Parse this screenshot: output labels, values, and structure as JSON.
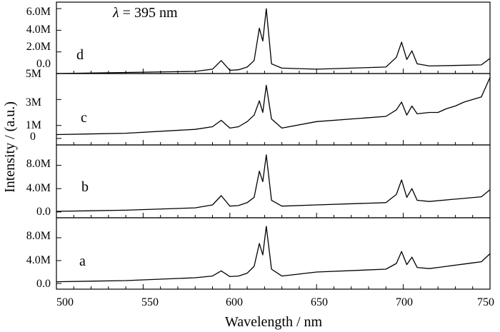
{
  "chart_data": {
    "type": "line",
    "xlabel": "Wavelength / nm",
    "ylabel": "Intensity / (a.u.)",
    "xlim": [
      500,
      750
    ],
    "x_ticks": [
      500,
      550,
      600,
      650,
      700,
      750
    ],
    "x_tick_labels": [
      "500",
      "550",
      "600",
      "650",
      "700",
      "750"
    ],
    "annotation": {
      "symbol": "λ",
      "text": " = 395 nm"
    },
    "colors": {
      "line": "#000000",
      "frame": "#000000"
    },
    "grid": false,
    "panels": [
      {
        "label": "d",
        "ylim": [
          0,
          6.6
        ],
        "y_ticks": [
          0,
          2,
          4,
          6
        ],
        "y_tick_labels": [
          "0.0",
          "2.0M",
          "4.0M",
          "6.0M"
        ],
        "x": [
          500,
          540,
          580,
          590,
          595,
          600,
          605,
          610,
          614,
          617,
          619,
          621,
          624,
          630,
          650,
          690,
          696,
          699,
          702,
          705,
          708,
          715,
          745,
          750
        ],
        "values": [
          0,
          0.1,
          0.2,
          0.4,
          1.2,
          0.3,
          0.35,
          0.6,
          1.2,
          4.2,
          3.0,
          6.0,
          0.9,
          0.5,
          0.4,
          0.6,
          1.5,
          2.9,
          1.3,
          2.1,
          0.9,
          0.7,
          0.8,
          1.4
        ]
      },
      {
        "label": "c",
        "ylim": [
          -0.5,
          5
        ],
        "y_ticks": [
          0,
          1,
          3,
          5
        ],
        "y_tick_labels": [
          "0",
          "1M",
          "3M",
          "5M"
        ],
        "x": [
          500,
          540,
          580,
          590,
          595,
          600,
          605,
          610,
          614,
          617,
          619,
          621,
          624,
          630,
          650,
          690,
          696,
          699,
          702,
          705,
          708,
          715,
          720,
          725,
          730,
          735,
          740,
          745,
          750
        ],
        "values": [
          0.3,
          0.4,
          0.7,
          0.9,
          1.4,
          0.8,
          0.9,
          1.3,
          1.8,
          2.9,
          2.0,
          4.1,
          1.5,
          0.8,
          1.3,
          1.7,
          2.2,
          2.8,
          1.8,
          2.5,
          1.9,
          2.0,
          2.0,
          2.3,
          2.5,
          2.8,
          3.0,
          3.2,
          4.7
        ]
      },
      {
        "label": "b",
        "ylim": [
          -1,
          11.5
        ],
        "y_ticks": [
          0,
          4,
          8
        ],
        "y_tick_labels": [
          "0.0",
          "4.0M",
          "8.0M"
        ],
        "x": [
          500,
          540,
          580,
          590,
          595,
          600,
          605,
          610,
          614,
          617,
          619,
          621,
          624,
          630,
          650,
          690,
          696,
          699,
          702,
          705,
          708,
          715,
          745,
          750
        ],
        "values": [
          0.1,
          0.3,
          0.7,
          1.2,
          2.8,
          1.0,
          1.1,
          1.6,
          2.5,
          7.0,
          5.2,
          9.8,
          2.0,
          1.0,
          1.2,
          1.6,
          3.0,
          5.5,
          2.5,
          4.0,
          2.0,
          1.8,
          2.6,
          3.8
        ]
      },
      {
        "label": "a",
        "ylim": [
          -1,
          11.5
        ],
        "y_ticks": [
          0,
          4,
          8
        ],
        "y_tick_labels": [
          "0.0",
          "4.0M",
          "8.0M"
        ],
        "x": [
          500,
          540,
          580,
          590,
          595,
          600,
          605,
          610,
          614,
          617,
          619,
          621,
          624,
          630,
          650,
          690,
          696,
          699,
          702,
          705,
          708,
          715,
          720,
          725,
          730,
          735,
          740,
          745,
          750
        ],
        "values": [
          0.3,
          0.5,
          1.0,
          1.3,
          2.2,
          1.2,
          1.3,
          1.8,
          3.0,
          7.0,
          5.0,
          10.0,
          2.5,
          1.3,
          2.0,
          2.5,
          3.5,
          5.6,
          3.3,
          4.6,
          2.8,
          2.6,
          2.8,
          3.0,
          3.2,
          3.4,
          3.6,
          3.8,
          5.2
        ]
      }
    ]
  }
}
